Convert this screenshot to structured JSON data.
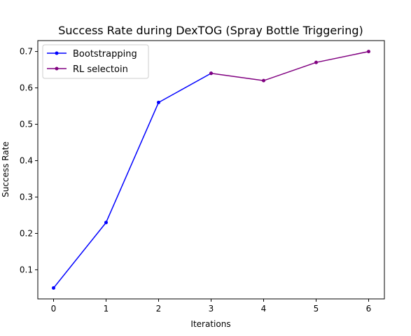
{
  "chart_data": {
    "type": "line",
    "title": "Success Rate during DexTOG (Spray Bottle Triggering)",
    "xlabel": "Iterations",
    "ylabel": "Success Rate",
    "xlim": [
      -0.3,
      6.3
    ],
    "ylim": [
      0.02,
      0.73
    ],
    "xticks": [
      0,
      1,
      2,
      3,
      4,
      5,
      6
    ],
    "xtick_labels": [
      "0",
      "1",
      "2",
      "3",
      "4",
      "5",
      "6"
    ],
    "yticks": [
      0.1,
      0.2,
      0.3,
      0.4,
      0.5,
      0.6,
      0.7
    ],
    "ytick_labels": [
      "0.1",
      "0.2",
      "0.3",
      "0.4",
      "0.5",
      "0.6",
      "0.7"
    ],
    "grid": false,
    "legend_position": "top-left",
    "series": [
      {
        "name": "Bootstrapping",
        "color": "#0000ff",
        "x": [
          0,
          1,
          2,
          3
        ],
        "y": [
          0.05,
          0.23,
          0.56,
          0.64
        ]
      },
      {
        "name": "RL selectoin",
        "color": "#800080",
        "x": [
          3,
          4,
          5,
          6
        ],
        "y": [
          0.64,
          0.62,
          0.67,
          0.7
        ]
      }
    ]
  }
}
